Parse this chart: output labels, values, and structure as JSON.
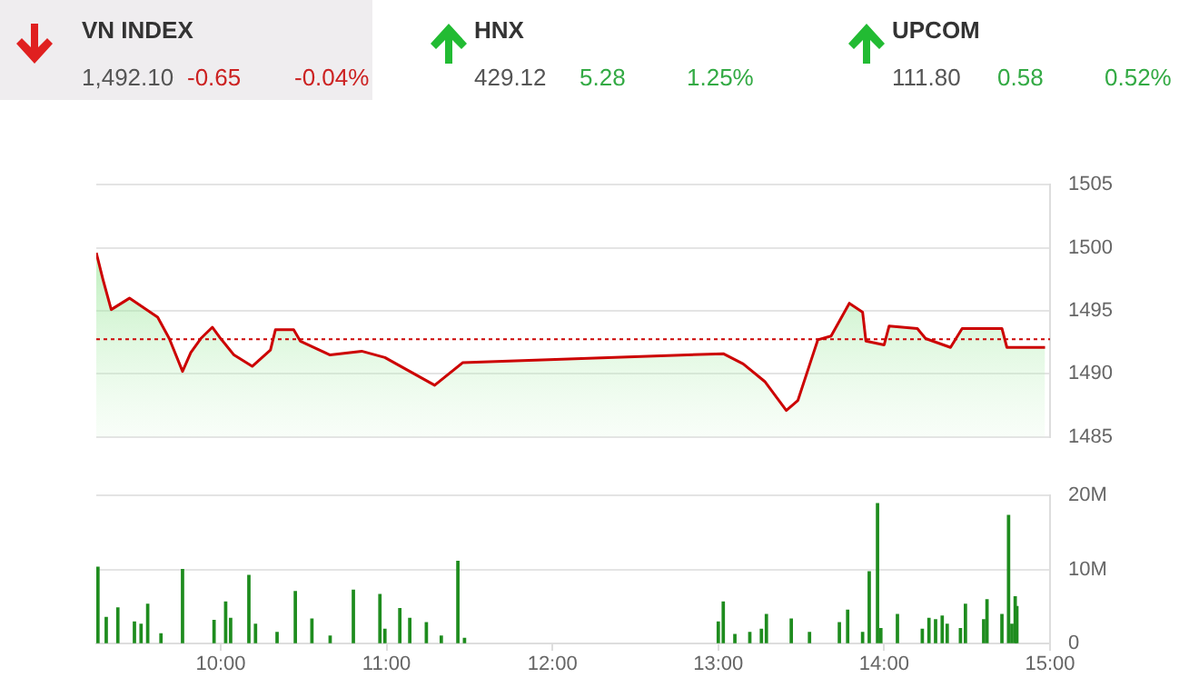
{
  "chart_data": [
    {
      "type": "other",
      "annotations": [
        "VN INDEX",
        "1,492.10",
        "-0.65",
        "-0.04%",
        "HNX",
        "429.12",
        "5.28",
        "1.25%",
        "UPCOM",
        "111.80",
        "0.58",
        "0.52%"
      ]
    },
    {
      "type": "area",
      "x": [
        9.25,
        9.29,
        9.34,
        9.45,
        9.62,
        9.69,
        9.77,
        9.82,
        9.88,
        9.95,
        10.0,
        10.08,
        10.19,
        10.3,
        10.33,
        10.44,
        10.48,
        10.66,
        10.85,
        10.99,
        11.14,
        11.29,
        11.46,
        13.03,
        13.15,
        13.28,
        13.41,
        13.48,
        13.56,
        13.6,
        13.68,
        13.79,
        13.87,
        13.89,
        14.0,
        14.03,
        14.2,
        14.25,
        14.4,
        14.47,
        14.71,
        14.74,
        14.97
      ],
      "series": [
        {
          "color": "#cc0000",
          "values": [
            1499.6,
            1497.5,
            1495.1,
            1496.0,
            1494.5,
            1492.8,
            1490.2,
            1491.7,
            1492.8,
            1493.7,
            1492.8,
            1491.5,
            1490.6,
            1491.9,
            1493.5,
            1493.5,
            1492.6,
            1491.5,
            1491.8,
            1491.3,
            1490.2,
            1489.1,
            1490.9,
            1491.6,
            1490.8,
            1489.4,
            1487.1,
            1487.9,
            1491.1,
            1492.7,
            1493.0,
            1495.6,
            1494.9,
            1492.6,
            1492.3,
            1493.8,
            1493.6,
            1492.8,
            1492.1,
            1493.6,
            1493.6,
            1492.1,
            1492.1
          ]
        }
      ],
      "xlim": [
        9.25,
        15
      ],
      "ylim": [
        1485,
        1505
      ],
      "yticks": [
        1485,
        1490,
        1495,
        1500,
        1505
      ],
      "grid": "y",
      "tick_labels": "y",
      "ref_lines": [
        {
          "axis": "y",
          "value": 1492.75,
          "color": "#cc0000",
          "line_style": "dotted"
        }
      ]
    },
    {
      "type": "bar",
      "x": [
        9.26,
        9.31,
        9.38,
        9.48,
        9.52,
        9.56,
        9.64,
        9.77,
        9.96,
        10.03,
        10.06,
        10.17,
        10.21,
        10.34,
        10.45,
        10.55,
        10.66,
        10.8,
        10.96,
        10.99,
        11.08,
        11.14,
        11.24,
        11.33,
        11.43,
        11.47,
        13.0,
        13.03,
        13.1,
        13.19,
        13.26,
        13.29,
        13.44,
        13.55,
        13.73,
        13.78,
        13.87,
        13.91,
        13.96,
        13.98,
        14.08,
        14.23,
        14.27,
        14.31,
        14.35,
        14.38,
        14.46,
        14.49,
        14.6,
        14.62,
        14.71,
        14.75,
        14.77,
        14.79,
        14.8
      ],
      "values": [
        10.3,
        3.5,
        4.8,
        2.9,
        2.6,
        5.3,
        1.3,
        10.0,
        3.1,
        5.6,
        3.4,
        9.2,
        2.6,
        1.5,
        7.0,
        3.3,
        1.0,
        7.2,
        6.6,
        1.9,
        4.7,
        3.4,
        2.8,
        1.0,
        11.1,
        0.7,
        2.9,
        5.6,
        1.2,
        1.5,
        1.9,
        3.9,
        3.3,
        1.5,
        2.8,
        4.5,
        1.5,
        9.7,
        18.9,
        2.0,
        3.9,
        1.9,
        3.4,
        3.2,
        3.7,
        2.6,
        2.0,
        5.3,
        3.2,
        5.9,
        3.9,
        17.3,
        2.6,
        6.3,
        5.0
      ],
      "color": "#1e8c1e",
      "xlim": [
        9.25,
        15
      ],
      "xticks": [
        {
          "value": 10,
          "label": "10:00"
        },
        {
          "value": 11,
          "label": "11:00"
        },
        {
          "value": 12,
          "label": "12:00"
        },
        {
          "value": 13,
          "label": "13:00"
        },
        {
          "value": 14,
          "label": "14:00"
        },
        {
          "value": 15,
          "label": "15:00"
        }
      ],
      "ylim": [
        0,
        20
      ],
      "yticks": [
        0,
        {
          "value": 10,
          "label": "10M"
        },
        {
          "value": 20,
          "label": "20M"
        }
      ],
      "grid": "y"
    }
  ]
}
